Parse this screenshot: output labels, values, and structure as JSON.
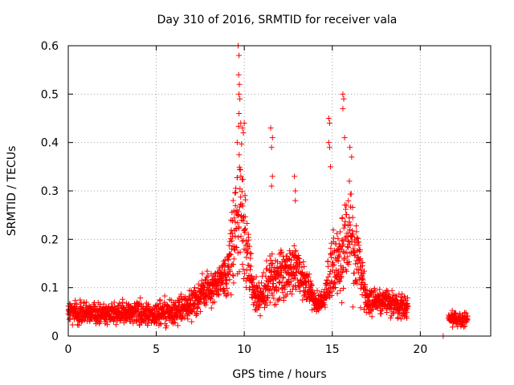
{
  "chart_data": {
    "type": "scatter",
    "title": "Day 310 of 2016, SRMTID for receiver vala",
    "xlabel": "GPS time / hours",
    "ylabel": "SRMTID / TECUs",
    "xlim": [
      0,
      24
    ],
    "ylim": [
      0,
      0.6
    ],
    "x_ticks": [
      0,
      5,
      10,
      15,
      20
    ],
    "y_ticks": [
      0,
      0.1,
      0.2,
      0.3,
      0.4,
      0.5,
      0.6
    ],
    "x_tick_labels": [
      "0",
      "5",
      "10",
      "15",
      "20"
    ],
    "y_tick_labels": [
      "0",
      "0.1",
      "0.2",
      "0.3",
      "0.4",
      "0.5",
      "0.6"
    ],
    "grid": true,
    "marker": "+",
    "marker_color": "#ff0000",
    "series": [
      {
        "name": "SRMTID",
        "profile": [
          {
            "t": 0.0,
            "base": 0.05,
            "spread": 0.035
          },
          {
            "t": 2.0,
            "base": 0.045,
            "spread": 0.03
          },
          {
            "t": 4.0,
            "base": 0.05,
            "spread": 0.035
          },
          {
            "t": 5.0,
            "base": 0.045,
            "spread": 0.035
          },
          {
            "t": 6.0,
            "base": 0.05,
            "spread": 0.04
          },
          {
            "t": 7.0,
            "base": 0.065,
            "spread": 0.04
          },
          {
            "t": 8.0,
            "base": 0.1,
            "spread": 0.05
          },
          {
            "t": 9.0,
            "base": 0.12,
            "spread": 0.06
          },
          {
            "t": 9.5,
            "base": 0.22,
            "spread": 0.16
          },
          {
            "t": 9.7,
            "base": 0.3,
            "spread": 0.25
          },
          {
            "t": 10.0,
            "base": 0.2,
            "spread": 0.15
          },
          {
            "t": 10.5,
            "base": 0.09,
            "spread": 0.05
          },
          {
            "t": 11.0,
            "base": 0.08,
            "spread": 0.05
          },
          {
            "t": 11.5,
            "base": 0.12,
            "spread": 0.07
          },
          {
            "t": 12.5,
            "base": 0.13,
            "spread": 0.07
          },
          {
            "t": 13.0,
            "base": 0.14,
            "spread": 0.08
          },
          {
            "t": 13.5,
            "base": 0.11,
            "spread": 0.05
          },
          {
            "t": 14.0,
            "base": 0.07,
            "spread": 0.03
          },
          {
            "t": 14.5,
            "base": 0.07,
            "spread": 0.03
          },
          {
            "t": 15.0,
            "base": 0.14,
            "spread": 0.12
          },
          {
            "t": 15.5,
            "base": 0.15,
            "spread": 0.1
          },
          {
            "t": 16.0,
            "base": 0.22,
            "spread": 0.16
          },
          {
            "t": 16.5,
            "base": 0.15,
            "spread": 0.1
          },
          {
            "t": 17.0,
            "base": 0.07,
            "spread": 0.04
          },
          {
            "t": 18.0,
            "base": 0.07,
            "spread": 0.04
          },
          {
            "t": 19.0,
            "base": 0.06,
            "spread": 0.035
          }
        ],
        "segments": [
          [
            0.0,
            19.3
          ],
          [
            21.6,
            22.7
          ]
        ],
        "late_segment_profile": {
          "base": 0.035,
          "spread": 0.02
        },
        "spikes": [
          {
            "x": 9.65,
            "y": 0.6
          },
          {
            "x": 9.7,
            "y": 0.58
          },
          {
            "x": 9.68,
            "y": 0.54
          },
          {
            "x": 9.72,
            "y": 0.52
          },
          {
            "x": 9.7,
            "y": 0.5
          },
          {
            "x": 9.75,
            "y": 0.49
          },
          {
            "x": 9.7,
            "y": 0.46
          },
          {
            "x": 9.8,
            "y": 0.44
          },
          {
            "x": 9.9,
            "y": 0.43
          },
          {
            "x": 9.95,
            "y": 0.42
          },
          {
            "x": 10.0,
            "y": 0.44
          },
          {
            "x": 9.6,
            "y": 0.4
          },
          {
            "x": 11.5,
            "y": 0.43
          },
          {
            "x": 11.6,
            "y": 0.41
          },
          {
            "x": 11.55,
            "y": 0.39
          },
          {
            "x": 11.6,
            "y": 0.33
          },
          {
            "x": 11.55,
            "y": 0.31
          },
          {
            "x": 12.85,
            "y": 0.33
          },
          {
            "x": 12.9,
            "y": 0.3
          },
          {
            "x": 12.9,
            "y": 0.28
          },
          {
            "x": 14.8,
            "y": 0.45
          },
          {
            "x": 14.85,
            "y": 0.44
          },
          {
            "x": 14.8,
            "y": 0.4
          },
          {
            "x": 14.85,
            "y": 0.39
          },
          {
            "x": 14.9,
            "y": 0.35
          },
          {
            "x": 15.6,
            "y": 0.5
          },
          {
            "x": 15.65,
            "y": 0.49
          },
          {
            "x": 15.6,
            "y": 0.47
          },
          {
            "x": 15.7,
            "y": 0.41
          },
          {
            "x": 16.0,
            "y": 0.39
          },
          {
            "x": 16.1,
            "y": 0.37
          },
          {
            "x": 21.3,
            "y": 0.0
          }
        ]
      }
    ]
  }
}
